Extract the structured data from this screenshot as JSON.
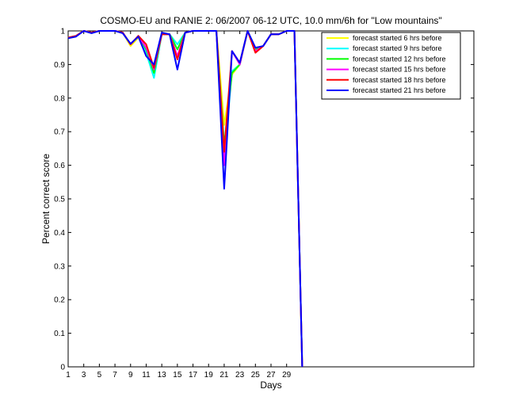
{
  "chart_data": {
    "type": "line",
    "title": "COSMO-EU and RANIE 2: 06/2007 06-12 UTC, 10.0 mm/6h for \"Low mountains\"",
    "xlabel": "Days",
    "ylabel": "Percent correct score",
    "xlim": [
      1,
      53
    ],
    "ylim": [
      0,
      1
    ],
    "xticks": [
      1,
      3,
      5,
      7,
      9,
      11,
      13,
      15,
      17,
      19,
      21,
      23,
      25,
      27,
      29
    ],
    "yticks": [
      0,
      0.1,
      0.2,
      0.3,
      0.4,
      0.5,
      0.6,
      0.7,
      0.8,
      0.9,
      1
    ],
    "ytick_labels": [
      "0",
      "0.1",
      "0.2",
      "0.3",
      "0.4",
      "0.5",
      "0.6",
      "0.7",
      "0.8",
      "0.9",
      "1"
    ],
    "legend_position": "top-right",
    "grid": false,
    "x": [
      1,
      2,
      3,
      4,
      5,
      6,
      7,
      8,
      9,
      10,
      11,
      12,
      13,
      14,
      15,
      16,
      17,
      18,
      19,
      20,
      21,
      22,
      23,
      24,
      25,
      26,
      27,
      28,
      29,
      30,
      31
    ],
    "series": [
      {
        "name": "forecast started 6 hrs before",
        "color": "#ffff00",
        "values": [
          0.98,
          0.985,
          1.0,
          0.995,
          1.0,
          1.0,
          1.0,
          0.995,
          0.955,
          0.98,
          0.945,
          0.89,
          0.99,
          0.99,
          0.92,
          0.995,
          1.0,
          1.0,
          1.0,
          1.0,
          0.72,
          0.87,
          0.9,
          1.0,
          0.945,
          0.955,
          0.99,
          0.99,
          1.0,
          1.0,
          0
        ]
      },
      {
        "name": "forecast started 9 hrs before",
        "color": "#00ffff",
        "values": [
          0.98,
          0.985,
          1.0,
          0.995,
          1.0,
          1.0,
          1.0,
          0.995,
          0.96,
          0.985,
          0.935,
          0.86,
          0.99,
          0.99,
          0.96,
          0.995,
          1.0,
          1.0,
          1.0,
          1.0,
          0.62,
          0.88,
          0.9,
          1.0,
          0.945,
          0.955,
          0.99,
          0.99,
          1.0,
          1.0,
          0
        ]
      },
      {
        "name": "forecast started 12 hrs before",
        "color": "#00ff00",
        "values": [
          0.98,
          0.985,
          1.0,
          0.995,
          1.0,
          1.0,
          1.0,
          0.995,
          0.96,
          0.985,
          0.945,
          0.875,
          0.99,
          0.99,
          0.945,
          0.995,
          1.0,
          1.0,
          1.0,
          1.0,
          0.66,
          0.875,
          0.9,
          1.0,
          0.945,
          0.955,
          0.99,
          0.99,
          1.0,
          1.0,
          0
        ]
      },
      {
        "name": "forecast started 15 hrs before",
        "color": "#ff00ff",
        "values": [
          0.98,
          0.985,
          1.0,
          0.995,
          1.0,
          1.0,
          1.0,
          0.995,
          0.96,
          0.985,
          0.95,
          0.885,
          0.99,
          0.99,
          0.925,
          0.995,
          1.0,
          1.0,
          1.0,
          1.0,
          0.6,
          0.94,
          0.9,
          1.0,
          0.94,
          0.955,
          0.99,
          0.99,
          1.0,
          1.0,
          0
        ]
      },
      {
        "name": "forecast started 18 hrs before",
        "color": "#ff0000",
        "values": [
          0.98,
          0.985,
          1.0,
          0.995,
          1.0,
          1.0,
          1.0,
          0.995,
          0.96,
          0.985,
          0.96,
          0.89,
          0.99,
          0.99,
          0.915,
          0.995,
          1.0,
          1.0,
          1.0,
          1.0,
          0.64,
          0.94,
          0.905,
          1.0,
          0.935,
          0.955,
          0.99,
          0.99,
          1.0,
          1.0,
          0
        ]
      },
      {
        "name": "forecast started 21 hrs before",
        "color": "#0000ff",
        "values": [
          0.978,
          0.983,
          1.0,
          0.993,
          1.0,
          1.0,
          1.0,
          0.993,
          0.962,
          0.983,
          0.925,
          0.9,
          0.995,
          0.99,
          0.885,
          0.995,
          1.0,
          1.0,
          1.0,
          1.0,
          0.53,
          0.94,
          0.905,
          1.0,
          0.95,
          0.955,
          0.99,
          0.99,
          1.0,
          1.0,
          0
        ]
      }
    ]
  }
}
